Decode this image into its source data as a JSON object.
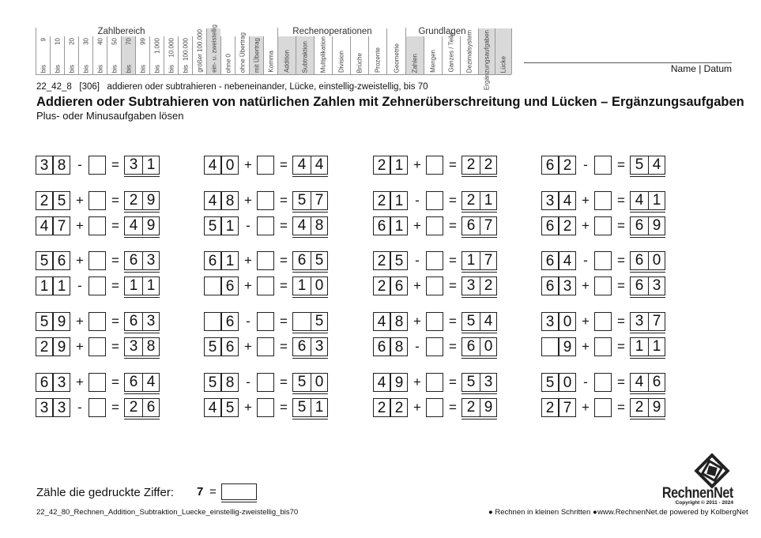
{
  "header": {
    "groups": {
      "zahlbereich": "Zahlbereich",
      "rechenoperationen": "Rechenoperationen",
      "grundlagen": "Grundlagen"
    },
    "zahlbereich": [
      {
        "top": "9",
        "bot": "bis",
        "shaded": false
      },
      {
        "top": "10",
        "bot": "bis",
        "shaded": false
      },
      {
        "top": "20",
        "bot": "bis",
        "shaded": false
      },
      {
        "top": "30",
        "bot": "bis",
        "shaded": false
      },
      {
        "top": "40",
        "bot": "bis",
        "shaded": false
      },
      {
        "top": "50",
        "bot": "bis",
        "shaded": false
      },
      {
        "top": "70",
        "bot": "bis",
        "shaded": true
      },
      {
        "top": "99",
        "bot": "bis",
        "shaded": false
      },
      {
        "top": "1.000",
        "bot": "bis",
        "shaded": false
      },
      {
        "top": "10.000",
        "bot": "bis",
        "shaded": false
      },
      {
        "top": "100.000",
        "bot": "bis",
        "shaded": false
      },
      {
        "top": "",
        "bot": "größer 100.000",
        "shaded": false
      }
    ],
    "extra": [
      {
        "label": "ein- u. zweistellig",
        "shaded": true
      },
      {
        "label": "ohne 0",
        "shaded": false
      },
      {
        "label": "ohne Übertrag",
        "shaded": false
      },
      {
        "label": "mit Übertrag",
        "shaded": true
      },
      {
        "label": "Komma",
        "shaded": false
      }
    ],
    "rechenoperationen": [
      {
        "label": "Addition",
        "shaded": true
      },
      {
        "label": "Subtraktion",
        "shaded": true
      },
      {
        "label": "Multiplikation",
        "shaded": false
      },
      {
        "label": "Division",
        "shaded": false
      },
      {
        "label": "Brüche",
        "shaded": false
      },
      {
        "label": "Prozente",
        "shaded": false
      }
    ],
    "geometrie": {
      "label": "Geometrie",
      "shaded": false
    },
    "grundlagen": [
      {
        "label": "Zahlen",
        "shaded": true
      },
      {
        "label": "Mengen",
        "shaded": false
      },
      {
        "label": "Ganzes / Teile",
        "shaded": false
      },
      {
        "label": "Dezimalsystem",
        "shaded": false
      }
    ],
    "tail": [
      {
        "label": "Ergänzungsaufgaben",
        "shaded": true
      },
      {
        "label": "Lücke",
        "shaded": true
      }
    ],
    "name_datum": "Name | Datum",
    "shade_color": "#d9d9d9"
  },
  "meta": {
    "code": "22_42_8",
    "number": "[306]",
    "description": "addieren oder subtrahieren - nebeneinander, Lücke, einstellig-zweistellig, bis 70"
  },
  "title": "Addieren oder Subtrahieren von natürlichen Zahlen mit Zehnerüberschreitung und Lücken – Ergänzungsaufgaben",
  "subtitle": "Plus- oder Minusaufgaben lösen",
  "exercises": [
    [
      {
        "a": [
          "3",
          "8"
        ],
        "op": "-",
        "r": [
          "3",
          "1"
        ]
      },
      {
        "a": [
          "2",
          "5"
        ],
        "op": "+",
        "r": [
          "2",
          "9"
        ]
      },
      {
        "a": [
          "4",
          "7"
        ],
        "op": "+",
        "r": [
          "4",
          "9"
        ]
      },
      {
        "a": [
          "5",
          "6"
        ],
        "op": "+",
        "r": [
          "6",
          "3"
        ]
      },
      {
        "a": [
          "1",
          "1"
        ],
        "op": "-",
        "r": [
          "1",
          "1"
        ]
      },
      {
        "a": [
          "5",
          "9"
        ],
        "op": "+",
        "r": [
          "6",
          "3"
        ]
      },
      {
        "a": [
          "2",
          "9"
        ],
        "op": "+",
        "r": [
          "3",
          "8"
        ]
      },
      {
        "a": [
          "6",
          "3"
        ],
        "op": "+",
        "r": [
          "6",
          "4"
        ]
      },
      {
        "a": [
          "3",
          "3"
        ],
        "op": "-",
        "r": [
          "2",
          "6"
        ]
      }
    ],
    [
      {
        "a": [
          "4",
          "0"
        ],
        "op": "+",
        "r": [
          "4",
          "4"
        ]
      },
      {
        "a": [
          "4",
          "8"
        ],
        "op": "+",
        "r": [
          "5",
          "7"
        ]
      },
      {
        "a": [
          "5",
          "1"
        ],
        "op": "-",
        "r": [
          "4",
          "8"
        ]
      },
      {
        "a": [
          "6",
          "1"
        ],
        "op": "+",
        "r": [
          "6",
          "5"
        ]
      },
      {
        "a": [
          "",
          "6"
        ],
        "op": "+",
        "r": [
          "1",
          "0"
        ]
      },
      {
        "a": [
          "",
          "6"
        ],
        "op": "-",
        "r": [
          "",
          "5"
        ]
      },
      {
        "a": [
          "5",
          "6"
        ],
        "op": "+",
        "r": [
          "6",
          "3"
        ]
      },
      {
        "a": [
          "5",
          "8"
        ],
        "op": "-",
        "r": [
          "5",
          "0"
        ]
      },
      {
        "a": [
          "4",
          "5"
        ],
        "op": "+",
        "r": [
          "5",
          "1"
        ]
      }
    ],
    [
      {
        "a": [
          "2",
          "1"
        ],
        "op": "+",
        "r": [
          "2",
          "2"
        ]
      },
      {
        "a": [
          "2",
          "1"
        ],
        "op": "-",
        "r": [
          "2",
          "1"
        ]
      },
      {
        "a": [
          "6",
          "1"
        ],
        "op": "+",
        "r": [
          "6",
          "7"
        ]
      },
      {
        "a": [
          "2",
          "5"
        ],
        "op": "-",
        "r": [
          "1",
          "7"
        ]
      },
      {
        "a": [
          "2",
          "6"
        ],
        "op": "+",
        "r": [
          "3",
          "2"
        ]
      },
      {
        "a": [
          "4",
          "8"
        ],
        "op": "+",
        "r": [
          "5",
          "4"
        ]
      },
      {
        "a": [
          "6",
          "8"
        ],
        "op": "-",
        "r": [
          "6",
          "0"
        ]
      },
      {
        "a": [
          "4",
          "9"
        ],
        "op": "+",
        "r": [
          "5",
          "3"
        ]
      },
      {
        "a": [
          "2",
          "2"
        ],
        "op": "+",
        "r": [
          "2",
          "9"
        ]
      }
    ],
    [
      {
        "a": [
          "6",
          "2"
        ],
        "op": "-",
        "r": [
          "5",
          "4"
        ]
      },
      {
        "a": [
          "3",
          "4"
        ],
        "op": "+",
        "r": [
          "4",
          "1"
        ]
      },
      {
        "a": [
          "6",
          "2"
        ],
        "op": "+",
        "r": [
          "6",
          "9"
        ]
      },
      {
        "a": [
          "6",
          "4"
        ],
        "op": "-",
        "r": [
          "6",
          "0"
        ]
      },
      {
        "a": [
          "6",
          "3"
        ],
        "op": "+",
        "r": [
          "6",
          "3"
        ]
      },
      {
        "a": [
          "3",
          "0"
        ],
        "op": "+",
        "r": [
          "3",
          "7"
        ]
      },
      {
        "a": [
          "",
          "9"
        ],
        "op": "+",
        "r": [
          "1",
          "1"
        ]
      },
      {
        "a": [
          "5",
          "0"
        ],
        "op": "-",
        "r": [
          "4",
          "6"
        ]
      },
      {
        "a": [
          "2",
          "7"
        ],
        "op": "+",
        "r": [
          "2",
          "9"
        ]
      }
    ]
  ],
  "equals": "=",
  "count": {
    "label": "Zähle die gedruckte Ziffer:",
    "digit": "7",
    "equals": "="
  },
  "footer": {
    "filename": "22_42_80_Rechnen_Addition_Subtraktion_Luecke_einstellig-zweistellig_bis70",
    "slogan": "● Rechnen in kleinen Schritten ●",
    "site": "www.RechnenNet.de powered by KolbergNet"
  },
  "logo": {
    "name": "RechnenNet",
    "copyright": "Copyright © 2011 - 2024"
  }
}
